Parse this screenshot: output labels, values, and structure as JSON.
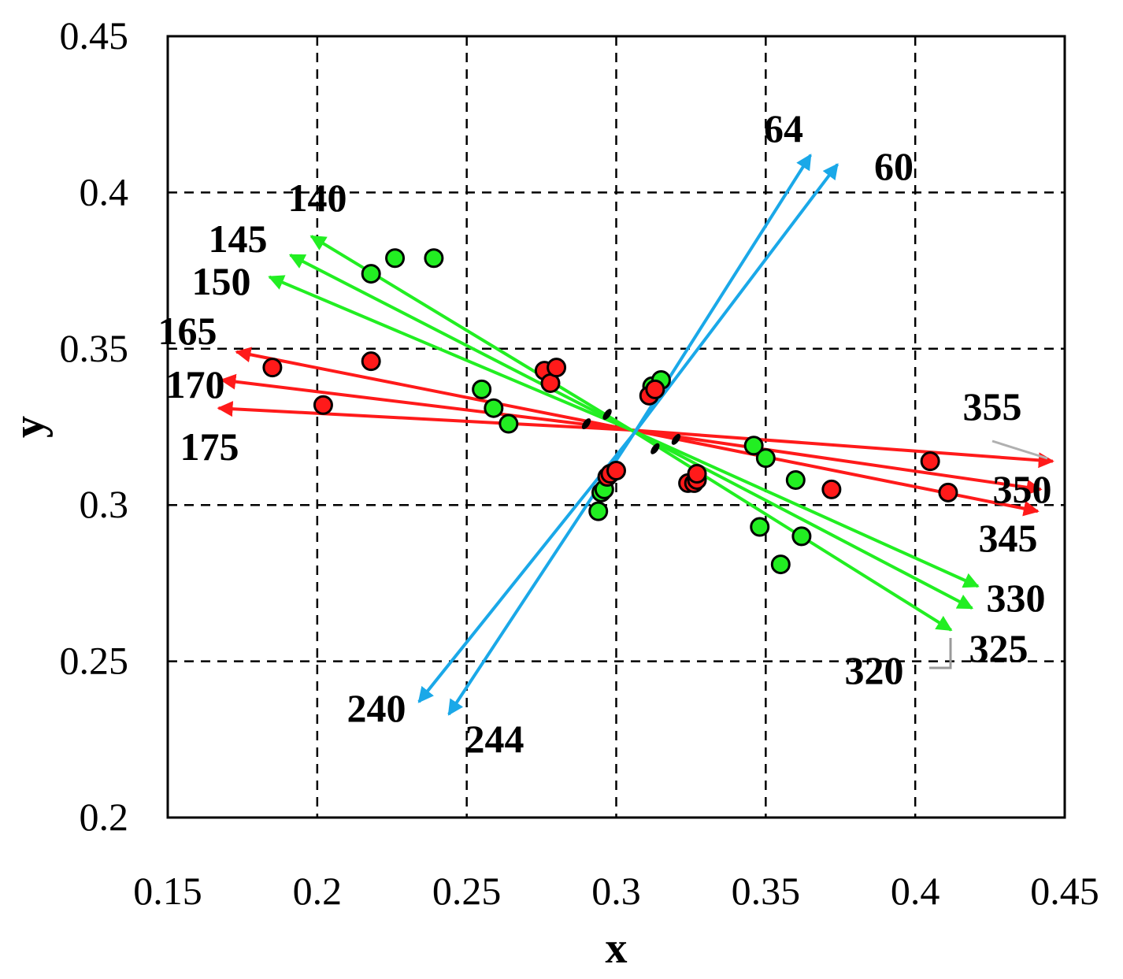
{
  "chart_data": {
    "type": "scatter",
    "title": "",
    "xlabel": "x",
    "ylabel": "y",
    "xlim": [
      0.15,
      0.45
    ],
    "ylim": [
      0.2,
      0.45
    ],
    "xticks": [
      0.15,
      0.2,
      0.25,
      0.3,
      0.35,
      0.4,
      0.45
    ],
    "yticks": [
      0.2,
      0.25,
      0.3,
      0.35,
      0.4,
      0.45
    ],
    "xtick_labels": [
      "0.15",
      "0.2",
      "0.25",
      "0.3",
      "0.35",
      "0.4",
      "0.45"
    ],
    "ytick_labels": [
      "0.2",
      "0.25",
      "0.3",
      "0.35",
      "0.4",
      "0.45"
    ],
    "grid": true,
    "grid_style": "dashed",
    "center": [
      0.305,
      0.324
    ],
    "colors": {
      "red": "#ff1a1a",
      "green": "#22ee22",
      "blue": "#1aa8e8",
      "black": "#000000"
    },
    "points_red": [
      [
        0.185,
        0.344
      ],
      [
        0.202,
        0.332
      ],
      [
        0.218,
        0.346
      ],
      [
        0.276,
        0.343
      ],
      [
        0.278,
        0.339
      ],
      [
        0.28,
        0.344
      ],
      [
        0.297,
        0.309
      ],
      [
        0.298,
        0.31
      ],
      [
        0.3,
        0.311
      ],
      [
        0.311,
        0.335
      ],
      [
        0.313,
        0.337
      ],
      [
        0.324,
        0.307
      ],
      [
        0.326,
        0.307
      ],
      [
        0.327,
        0.308
      ],
      [
        0.327,
        0.31
      ],
      [
        0.372,
        0.305
      ],
      [
        0.405,
        0.314
      ],
      [
        0.411,
        0.304
      ]
    ],
    "points_green": [
      [
        0.218,
        0.374
      ],
      [
        0.226,
        0.379
      ],
      [
        0.239,
        0.379
      ],
      [
        0.255,
        0.337
      ],
      [
        0.259,
        0.331
      ],
      [
        0.264,
        0.326
      ],
      [
        0.294,
        0.298
      ],
      [
        0.295,
        0.304
      ],
      [
        0.296,
        0.305
      ],
      [
        0.312,
        0.338
      ],
      [
        0.315,
        0.34
      ],
      [
        0.346,
        0.319
      ],
      [
        0.348,
        0.293
      ],
      [
        0.35,
        0.315
      ],
      [
        0.355,
        0.281
      ],
      [
        0.36,
        0.308
      ],
      [
        0.362,
        0.29
      ]
    ],
    "arrows": [
      {
        "label": "64",
        "color": "blue",
        "from": [
          0.306,
          0.323
        ],
        "to": [
          0.365,
          0.412
        ]
      },
      {
        "label": "60",
        "color": "blue",
        "from": [
          0.306,
          0.323
        ],
        "to": [
          0.374,
          0.409
        ]
      },
      {
        "label": "240",
        "color": "blue",
        "from": [
          0.306,
          0.323
        ],
        "to": [
          0.234,
          0.237
        ]
      },
      {
        "label": "244",
        "color": "blue",
        "from": [
          0.306,
          0.323
        ],
        "to": [
          0.244,
          0.233
        ]
      },
      {
        "label": "140",
        "color": "green",
        "from": [
          0.305,
          0.324
        ],
        "to": [
          0.198,
          0.386
        ]
      },
      {
        "label": "145",
        "color": "green",
        "from": [
          0.305,
          0.324
        ],
        "to": [
          0.191,
          0.38
        ]
      },
      {
        "label": "150",
        "color": "green",
        "from": [
          0.305,
          0.324
        ],
        "to": [
          0.184,
          0.373
        ]
      },
      {
        "label": "320",
        "color": "green",
        "from": [
          0.305,
          0.324
        ],
        "to": [
          0.412,
          0.26
        ]
      },
      {
        "label": "325",
        "color": "green",
        "from": [
          0.305,
          0.324
        ],
        "to": [
          0.419,
          0.267
        ]
      },
      {
        "label": "330",
        "color": "green",
        "from": [
          0.305,
          0.324
        ],
        "to": [
          0.421,
          0.274
        ]
      },
      {
        "label": "165",
        "color": "red",
        "from": [
          0.305,
          0.324
        ],
        "to": [
          0.173,
          0.349
        ]
      },
      {
        "label": "170",
        "color": "red",
        "from": [
          0.305,
          0.324
        ],
        "to": [
          0.168,
          0.34
        ]
      },
      {
        "label": "175",
        "color": "red",
        "from": [
          0.305,
          0.324
        ],
        "to": [
          0.167,
          0.331
        ]
      },
      {
        "label": "345",
        "color": "red",
        "from": [
          0.305,
          0.324
        ],
        "to": [
          0.441,
          0.298
        ]
      },
      {
        "label": "350",
        "color": "red",
        "from": [
          0.305,
          0.324
        ],
        "to": [
          0.442,
          0.305
        ]
      },
      {
        "label": "355",
        "color": "red",
        "from": [
          0.305,
          0.324
        ],
        "to": [
          0.446,
          0.314
        ]
      }
    ],
    "black_marks": [
      [
        0.29,
        0.326
      ],
      [
        0.297,
        0.329
      ],
      [
        0.313,
        0.318
      ],
      [
        0.32,
        0.321
      ]
    ]
  }
}
